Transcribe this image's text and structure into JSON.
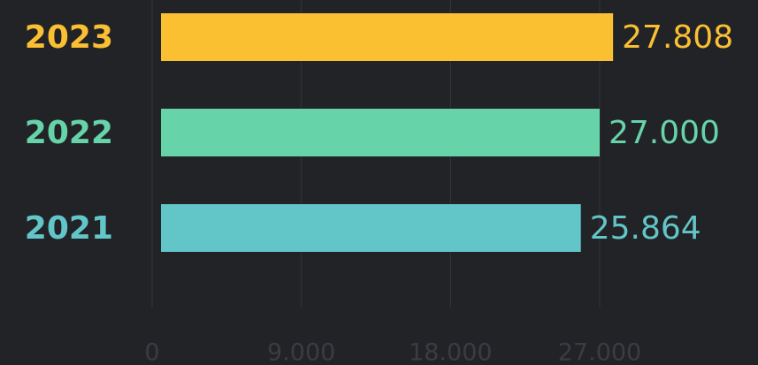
{
  "chart_data": {
    "type": "hbar",
    "categories": [
      "2023",
      "2022",
      "2021"
    ],
    "values": [
      27808,
      27000,
      25864
    ],
    "value_labels": [
      "27.808",
      "27.000",
      "25.864"
    ],
    "colors": [
      "#fbbf32",
      "#67d3a9",
      "#62c6c8"
    ],
    "xlim": [
      0,
      27000
    ],
    "xticks": [
      0,
      {
        "value": 9000,
        "label": "9.000"
      },
      {
        "value": 18000,
        "label": "18.000"
      },
      {
        "value": 27000,
        "label": "27.000"
      }
    ],
    "grid": true
  }
}
